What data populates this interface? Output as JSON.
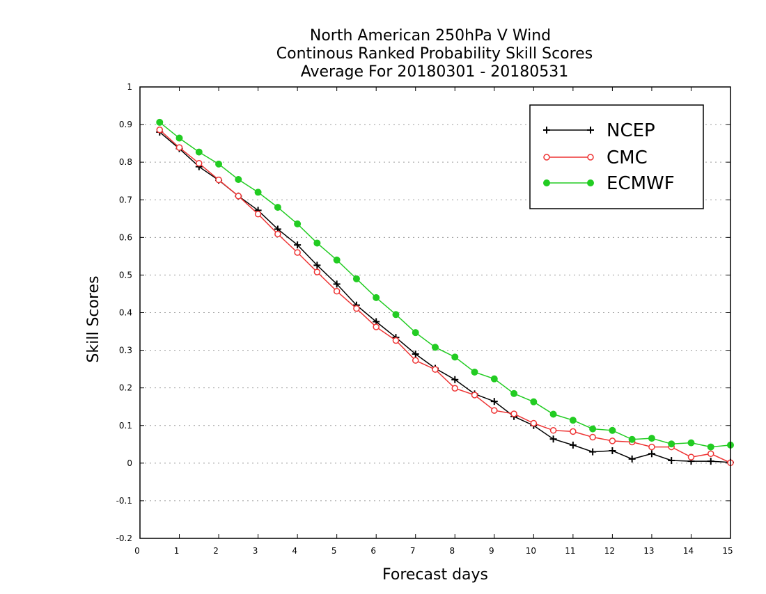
{
  "chart_data": {
    "type": "line",
    "title_lines": [
      "North American 250hPa V Wind",
      "Continous Ranked Probability Skill Scores",
      "Average For 20180301 - 20180531"
    ],
    "xlabel": "Forecast days",
    "ylabel": "Skill Scores",
    "xlim": [
      0,
      15
    ],
    "ylim": [
      -0.2,
      1
    ],
    "x_ticks": [
      0,
      1,
      2,
      3,
      4,
      5,
      6,
      7,
      8,
      9,
      10,
      11,
      12,
      13,
      14,
      15
    ],
    "x_tick_labels": [
      "0",
      "1",
      "2",
      "3",
      "4",
      "5",
      "6",
      "7",
      "8",
      "9",
      "10",
      "11",
      "12",
      "13",
      "14",
      "15"
    ],
    "y_ticks": [
      -0.2,
      -0.1,
      0,
      0.1,
      0.2,
      0.3,
      0.4,
      0.5,
      0.6,
      0.7,
      0.8,
      0.9,
      1
    ],
    "y_tick_labels": [
      "-0.2",
      "-0.1",
      "0",
      "0.1",
      "0.2",
      "0.3",
      "0.4",
      "0.5",
      "0.6",
      "0.7",
      "0.8",
      "0.9",
      "1"
    ],
    "grid": "horizontal dotted",
    "legend_position": "top-right",
    "x": [
      0.5,
      1,
      1.5,
      2,
      2.5,
      3,
      3.5,
      4,
      4.5,
      5,
      5.5,
      6,
      6.5,
      7,
      7.5,
      8,
      8.5,
      9,
      9.5,
      10,
      10.5,
      11,
      11.5,
      12,
      12.5,
      13,
      13.5,
      14,
      14.5,
      15
    ],
    "series": [
      {
        "name": "NCEP",
        "marker": "plus",
        "color": "#000000",
        "values": [
          0.88,
          0.836,
          0.788,
          0.752,
          0.71,
          0.672,
          0.622,
          0.58,
          0.526,
          0.476,
          0.42,
          0.376,
          0.334,
          0.29,
          0.252,
          0.222,
          0.184,
          0.164,
          0.124,
          0.1,
          0.064,
          0.048,
          0.03,
          0.033,
          0.011,
          0.025,
          0.007,
          0.005,
          0.005,
          0.002
        ]
      },
      {
        "name": "CMC",
        "marker": "open-circle",
        "color": "#ee3333",
        "values": [
          0.886,
          0.839,
          0.797,
          0.753,
          0.71,
          0.662,
          0.609,
          0.56,
          0.508,
          0.457,
          0.411,
          0.362,
          0.326,
          0.273,
          0.249,
          0.199,
          0.181,
          0.14,
          0.131,
          0.106,
          0.087,
          0.084,
          0.069,
          0.059,
          0.056,
          0.043,
          0.043,
          0.016,
          0.025,
          0.001
        ]
      },
      {
        "name": "ECMWF",
        "marker": "filled-circle",
        "color": "#22cc22",
        "values": [
          0.906,
          0.864,
          0.827,
          0.795,
          0.754,
          0.72,
          0.68,
          0.636,
          0.585,
          0.54,
          0.49,
          0.44,
          0.395,
          0.347,
          0.308,
          0.282,
          0.242,
          0.224,
          0.185,
          0.163,
          0.13,
          0.114,
          0.091,
          0.087,
          0.063,
          0.066,
          0.051,
          0.054,
          0.043,
          0.048
        ]
      }
    ]
  }
}
